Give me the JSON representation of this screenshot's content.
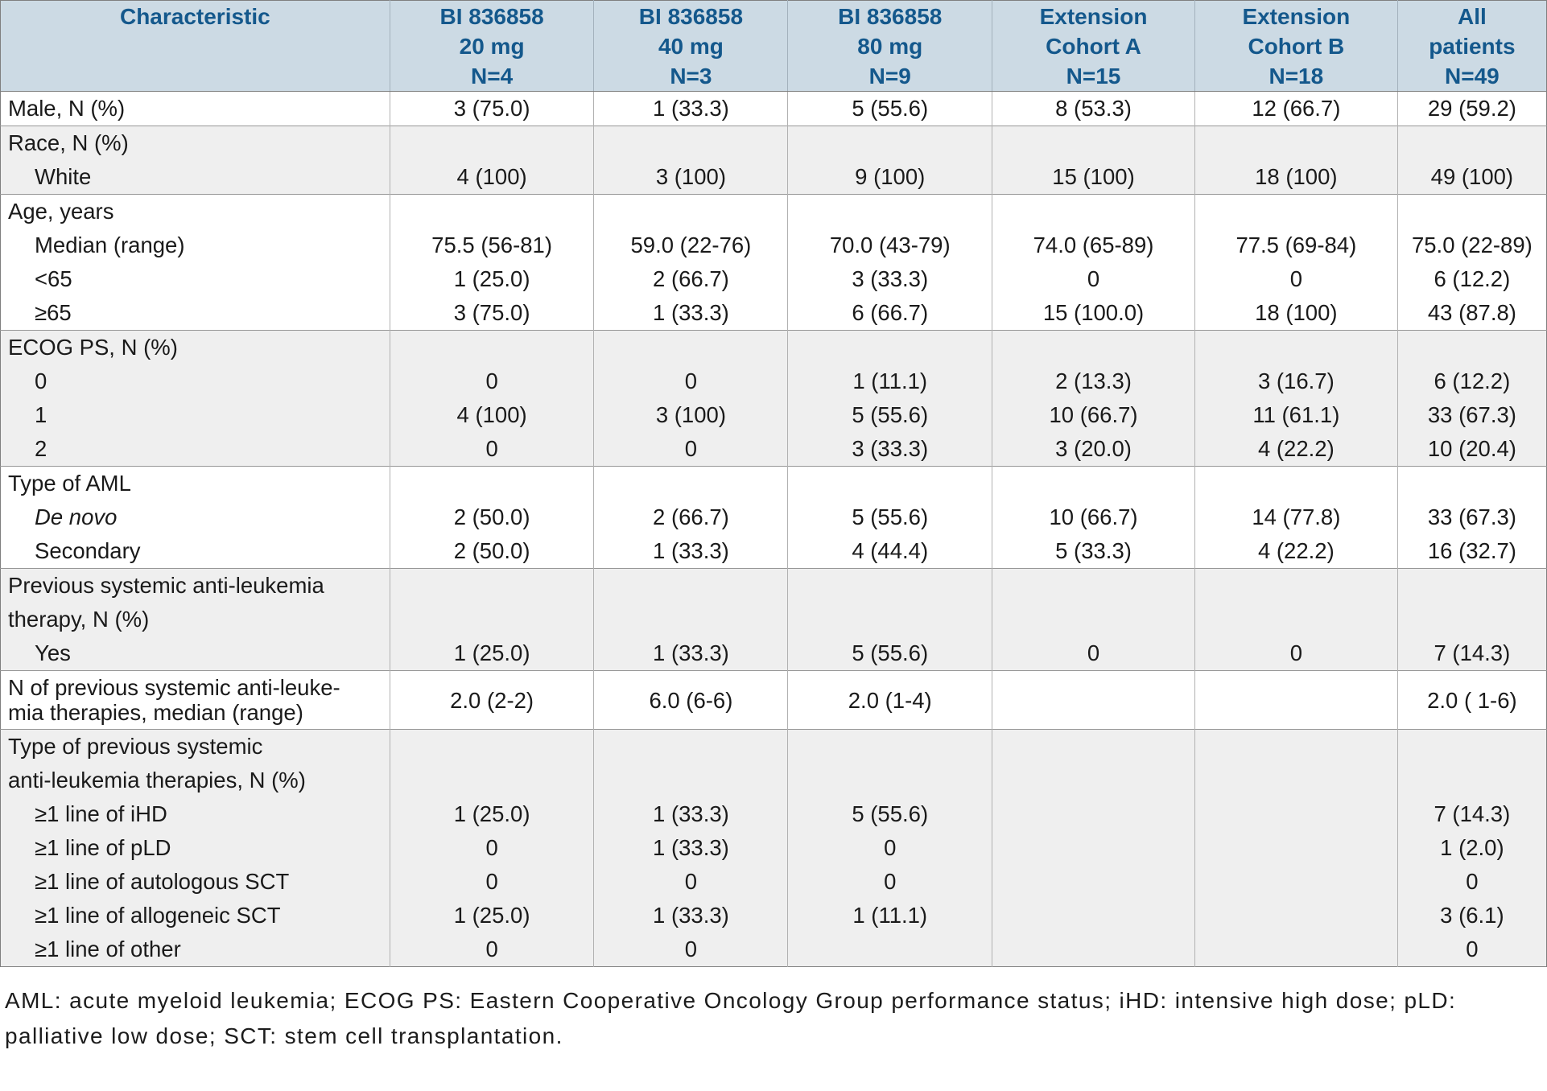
{
  "colors": {
    "header_bg": "#ccdae4",
    "header_text": "#14588c",
    "section_shade": "#efefef"
  },
  "table": {
    "header": {
      "characteristic": "Characteristic",
      "columns": [
        {
          "lines": [
            "BI 836858",
            "20 mg",
            "N=4"
          ]
        },
        {
          "lines": [
            "BI 836858",
            "40 mg",
            "N=3"
          ]
        },
        {
          "lines": [
            "BI 836858",
            "80 mg",
            "N=9"
          ]
        },
        {
          "lines": [
            "Extension",
            "Cohort A",
            "N=15"
          ]
        },
        {
          "lines": [
            "Extension",
            "Cohort B",
            "N=18"
          ]
        },
        {
          "lines": [
            "All",
            "patients",
            "N=49"
          ]
        }
      ]
    },
    "sections": [
      {
        "shade": false,
        "rows": [
          {
            "label": "Male, N (%)",
            "indent": false,
            "values": [
              "3 (75.0)",
              "1 (33.3)",
              "5 (55.6)",
              "8 (53.3)",
              "12 (66.7)",
              "29 (59.2)"
            ]
          }
        ]
      },
      {
        "shade": true,
        "rows": [
          {
            "label": "Race, N (%)",
            "indent": false,
            "values": [
              "",
              "",
              "",
              "",
              "",
              ""
            ]
          },
          {
            "label": "White",
            "indent": true,
            "values": [
              "4 (100)",
              "3 (100)",
              "9 (100)",
              "15 (100)",
              "18 (100)",
              "49 (100)"
            ]
          }
        ]
      },
      {
        "shade": false,
        "rows": [
          {
            "label": "Age, years",
            "indent": false,
            "values": [
              "",
              "",
              "",
              "",
              "",
              ""
            ]
          },
          {
            "label": "Median (range)",
            "indent": true,
            "values": [
              "75.5 (56-81)",
              "59.0 (22-76)",
              "70.0 (43-79)",
              "74.0 (65-89)",
              "77.5 (69-84)",
              "75.0 (22-89)"
            ]
          },
          {
            "label": "<65",
            "indent": true,
            "values": [
              "1 (25.0)",
              "2 (66.7)",
              "3 (33.3)",
              "0",
              "0",
              "6 (12.2)"
            ]
          },
          {
            "label": "≥65",
            "indent": true,
            "values": [
              "3 (75.0)",
              "1 (33.3)",
              "6 (66.7)",
              "15 (100.0)",
              "18 (100)",
              "43 (87.8)"
            ]
          }
        ]
      },
      {
        "shade": true,
        "rows": [
          {
            "label": "ECOG PS, N (%)",
            "indent": false,
            "values": [
              "",
              "",
              "",
              "",
              "",
              ""
            ]
          },
          {
            "label": "0",
            "indent": true,
            "values": [
              "0",
              "0",
              "1 (11.1)",
              "2 (13.3)",
              "3 (16.7)",
              "6 (12.2)"
            ]
          },
          {
            "label": "1",
            "indent": true,
            "values": [
              "4 (100)",
              "3 (100)",
              "5 (55.6)",
              "10 (66.7)",
              "11 (61.1)",
              "33 (67.3)"
            ]
          },
          {
            "label": "2",
            "indent": true,
            "values": [
              "0",
              "0",
              "3 (33.3)",
              "3 (20.0)",
              "4 (22.2)",
              "10 (20.4)"
            ]
          }
        ]
      },
      {
        "shade": false,
        "rows": [
          {
            "label": "Type of AML",
            "indent": false,
            "values": [
              "",
              "",
              "",
              "",
              "",
              ""
            ]
          },
          {
            "label": "De novo",
            "indent": true,
            "italic": true,
            "values": [
              "2 (50.0)",
              "2 (66.7)",
              "5 (55.6)",
              "10 (66.7)",
              "14 (77.8)",
              "33 (67.3)"
            ]
          },
          {
            "label": "Secondary",
            "indent": true,
            "values": [
              "2 (50.0)",
              "1 (33.3)",
              "4 (44.4)",
              "5 (33.3)",
              "4 (22.2)",
              "16 (32.7)"
            ]
          }
        ]
      },
      {
        "shade": true,
        "rows": [
          {
            "label_lines": [
              "Previous systemic anti-leukemia",
              "therapy, N (%)"
            ],
            "indent": false,
            "values": [
              "",
              "",
              "",
              "",
              "",
              ""
            ]
          },
          {
            "label": "Yes",
            "indent": true,
            "values": [
              "1 (25.0)",
              "1 (33.3)",
              "5 (55.6)",
              "0",
              "0",
              "7 (14.3)"
            ]
          }
        ]
      },
      {
        "shade": false,
        "compact": true,
        "rows": [
          {
            "label_lines": [
              "N of previous systemic anti-leuke-",
              "mia therapies, median (range)"
            ],
            "indent": false,
            "values": [
              "2.0 (2-2)",
              "6.0 (6-6)",
              "2.0 (1-4)",
              "",
              "",
              "2.0 ( 1-6)"
            ]
          }
        ]
      },
      {
        "shade": true,
        "rows": [
          {
            "label_lines": [
              "Type of previous systemic",
              "anti-leukemia therapies, N (%)"
            ],
            "indent": false,
            "values": [
              "",
              "",
              "",
              "",
              "",
              ""
            ]
          },
          {
            "label": "≥1 line of iHD",
            "indent": true,
            "values": [
              "1 (25.0)",
              "1 (33.3)",
              "5 (55.6)",
              "",
              "",
              "7 (14.3)"
            ]
          },
          {
            "label": "≥1 line of pLD",
            "indent": true,
            "values": [
              "0",
              "1 (33.3)",
              "0",
              "",
              "",
              "1 (2.0)"
            ]
          },
          {
            "label": "≥1 line of autologous SCT",
            "indent": true,
            "values": [
              "0",
              "0",
              "0",
              "",
              "",
              "0"
            ]
          },
          {
            "label": "≥1 line of allogeneic SCT",
            "indent": true,
            "values": [
              "1 (25.0)",
              "1 (33.3)",
              "1 (11.1)",
              "",
              "",
              "3 (6.1)"
            ]
          },
          {
            "label": "≥1 line of other",
            "indent": true,
            "values": [
              "0",
              "0",
              "",
              "",
              "",
              "0"
            ]
          }
        ]
      }
    ]
  },
  "footnote": "AML: acute myeloid leukemia; ECOG PS: Eastern Cooperative Oncology Group performance status; iHD: intensive high dose; pLD: palliative low dose; SCT: stem cell transplantation."
}
